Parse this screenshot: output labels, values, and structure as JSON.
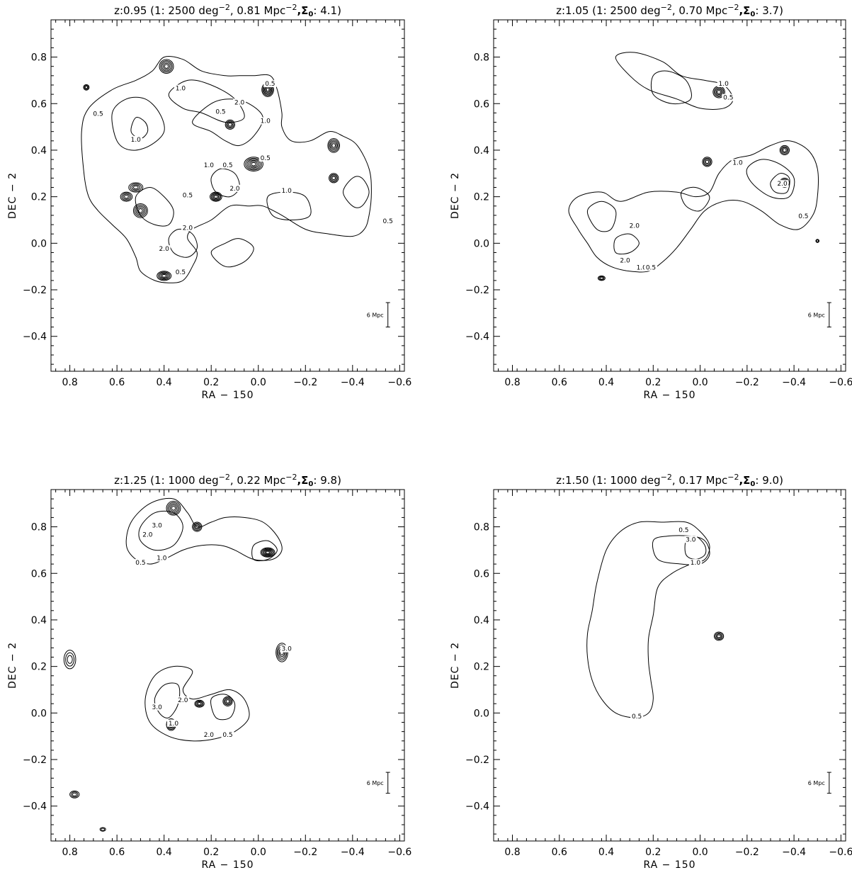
{
  "chart_data": [
    {
      "type": "contour",
      "title": {
        "main": "z:0.95 (1: 2500 deg",
        "e1": "−2",
        "mid": ", 0.81 Mpc",
        "e2": "−2",
        "sig": ",Σ",
        "sub": "0",
        "end": ":  4.1)"
      },
      "xlabel": "RA − 150",
      "ylabel": "DEC − 2",
      "xlim": [
        0.88,
        -0.62
      ],
      "ylim": [
        -0.55,
        0.96
      ],
      "x_ticks": [
        "0.8",
        "0.6",
        "0.4",
        "0.2",
        "0.0",
        "−0.2",
        "−0.4",
        "−0.6"
      ],
      "y_ticks": [
        "0.8",
        "0.6",
        "0.4",
        "0.2",
        "0.0",
        "−0.2",
        "−0.4"
      ],
      "scale_bar": "6 Mpc",
      "contour_labels": [
        {
          "text": "0.5",
          "x": 0.68,
          "y": 0.55
        },
        {
          "text": "1.0",
          "x": 0.33,
          "y": 0.66
        },
        {
          "text": "0.5",
          "x": 0.16,
          "y": 0.56
        },
        {
          "text": "1.0",
          "x": 0.52,
          "y": 0.44
        },
        {
          "text": "2.0",
          "x": 0.08,
          "y": 0.6
        },
        {
          "text": "1.0",
          "x": -0.03,
          "y": 0.52
        },
        {
          "text": "0.5",
          "x": -0.05,
          "y": 0.68
        },
        {
          "text": "1.0",
          "x": 0.21,
          "y": 0.33
        },
        {
          "text": "0.5",
          "x": 0.13,
          "y": 0.33
        },
        {
          "text": "0.5",
          "x": -0.03,
          "y": 0.36
        },
        {
          "text": "2.0",
          "x": 0.1,
          "y": 0.23
        },
        {
          "text": "1.0",
          "x": -0.12,
          "y": 0.22
        },
        {
          "text": "0.5",
          "x": 0.3,
          "y": 0.2
        },
        {
          "text": "2.0",
          "x": 0.3,
          "y": 0.06
        },
        {
          "text": "2.0",
          "x": 0.4,
          "y": -0.03
        },
        {
          "text": "0.5",
          "x": 0.33,
          "y": -0.13
        },
        {
          "text": "0.5",
          "x": -0.55,
          "y": 0.09
        }
      ]
    },
    {
      "type": "contour",
      "title": {
        "main": "z:1.05 (1: 2500 deg",
        "e1": "−2",
        "mid": ", 0.70 Mpc",
        "e2": "−2",
        "sig": ",Σ",
        "sub": "0",
        "end": ":  3.7)"
      },
      "xlabel": "RA − 150",
      "ylabel": "DEC − 2",
      "xlim": [
        0.88,
        -0.62
      ],
      "ylim": [
        -0.55,
        0.96
      ],
      "x_ticks": [
        "0.8",
        "0.6",
        "0.4",
        "0.2",
        "0.0",
        "−0.2",
        "−0.4",
        "−0.6"
      ],
      "y_ticks": [
        "0.8",
        "0.6",
        "0.4",
        "0.2",
        "0.0",
        "−0.2",
        "−0.4"
      ],
      "scale_bar": "6 Mpc",
      "contour_labels": [
        {
          "text": "1.0",
          "x": -0.1,
          "y": 0.68
        },
        {
          "text": "0.5",
          "x": -0.12,
          "y": 0.62
        },
        {
          "text": "1.0",
          "x": -0.16,
          "y": 0.34
        },
        {
          "text": "2.0",
          "x": -0.35,
          "y": 0.25
        },
        {
          "text": "0.5",
          "x": -0.44,
          "y": 0.11
        },
        {
          "text": "2.0",
          "x": 0.28,
          "y": 0.07
        },
        {
          "text": "2.0",
          "x": 0.32,
          "y": -0.08
        },
        {
          "text": "1.0",
          "x": 0.25,
          "y": -0.11
        },
        {
          "text": "0.5",
          "x": 0.21,
          "y": -0.11
        }
      ]
    },
    {
      "type": "contour",
      "title": {
        "main": "z:1.25 (1: 1000 deg",
        "e1": "−2",
        "mid": ", 0.22 Mpc",
        "e2": "−2",
        "sig": ",Σ",
        "sub": "0",
        "end": ":  9.8)"
      },
      "xlabel": "RA − 150",
      "ylabel": "DEC − 2",
      "xlim": [
        0.88,
        -0.62
      ],
      "ylim": [
        -0.55,
        0.96
      ],
      "x_ticks": [
        "0.8",
        "0.6",
        "0.4",
        "0.2",
        "0.0",
        "−0.2",
        "−0.4",
        "−0.6"
      ],
      "y_ticks": [
        "0.8",
        "0.6",
        "0.4",
        "0.2",
        "0.0",
        "−0.2",
        "−0.4"
      ],
      "scale_bar": "6 Mpc",
      "contour_labels": [
        {
          "text": "0.5",
          "x": 0.5,
          "y": 0.64
        },
        {
          "text": "2.0",
          "x": 0.47,
          "y": 0.76
        },
        {
          "text": "3.0",
          "x": 0.43,
          "y": 0.8
        },
        {
          "text": "1.0",
          "x": 0.41,
          "y": 0.66
        },
        {
          "text": "3.0",
          "x": -0.12,
          "y": 0.27
        },
        {
          "text": "2.0",
          "x": 0.32,
          "y": 0.05
        },
        {
          "text": "3.0",
          "x": 0.43,
          "y": 0.02
        },
        {
          "text": "1.0",
          "x": 0.36,
          "y": -0.05
        },
        {
          "text": "2.0",
          "x": 0.21,
          "y": -0.1
        },
        {
          "text": "0.5",
          "x": 0.13,
          "y": -0.1
        }
      ]
    },
    {
      "type": "contour",
      "title": {
        "main": "z:1.50 (1: 1000 deg",
        "e1": "−2",
        "mid": ", 0.17 Mpc",
        "e2": "−2",
        "sig": ",Σ",
        "sub": "0",
        "end": ":  9.0)"
      },
      "xlabel": "RA − 150",
      "ylabel": "DEC − 2",
      "xlim": [
        0.88,
        -0.62
      ],
      "ylim": [
        -0.55,
        0.96
      ],
      "x_ticks": [
        "0.8",
        "0.6",
        "0.4",
        "0.2",
        "0.0",
        "−0.2",
        "−0.4",
        "−0.6"
      ],
      "y_ticks": [
        "0.8",
        "0.6",
        "0.4",
        "0.2",
        "0.0",
        "−0.2",
        "−0.4"
      ],
      "scale_bar": "6 Mpc",
      "contour_labels": [
        {
          "text": "0.5",
          "x": 0.07,
          "y": 0.78
        },
        {
          "text": "3.0",
          "x": 0.04,
          "y": 0.74
        },
        {
          "text": "1.0",
          "x": 0.02,
          "y": 0.64
        },
        {
          "text": "0.5",
          "x": 0.27,
          "y": -0.02
        }
      ]
    }
  ]
}
